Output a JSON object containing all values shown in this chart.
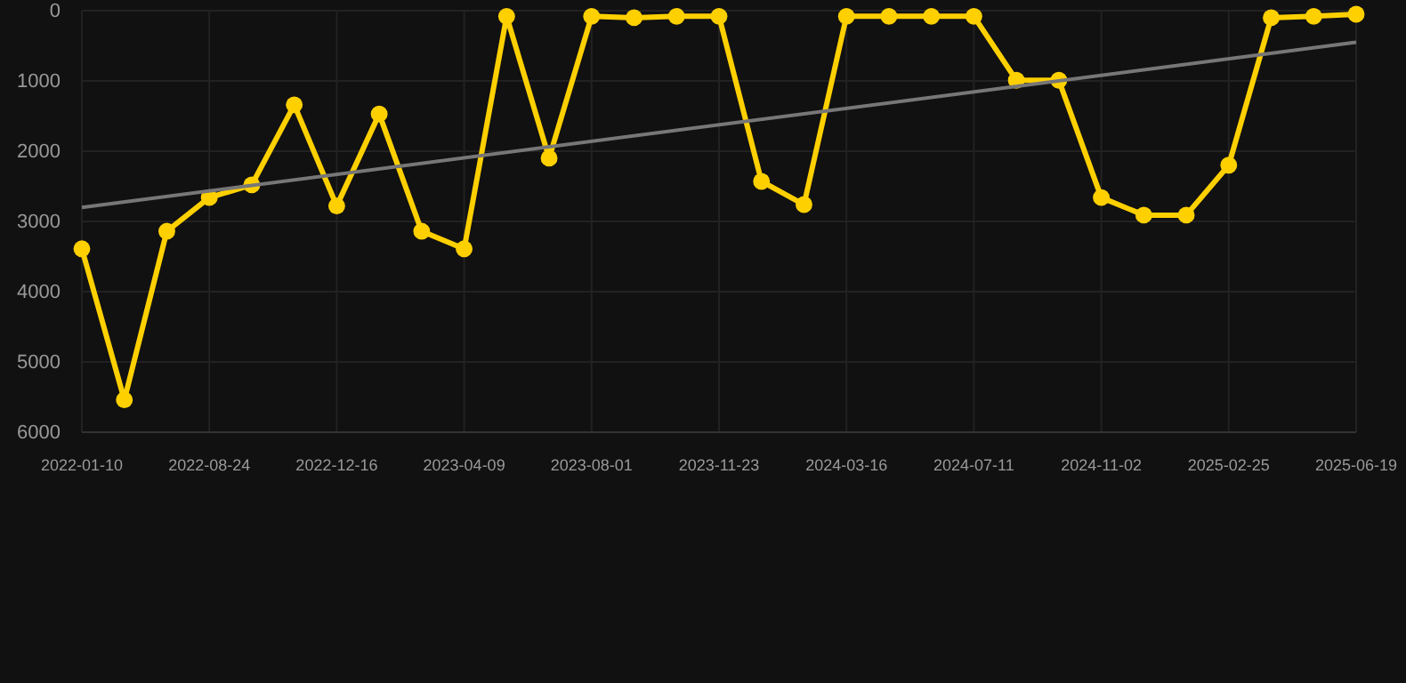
{
  "chart_data": {
    "type": "line",
    "categories": [
      "2022-01-10",
      null,
      null,
      "2022-08-24",
      null,
      null,
      "2022-12-16",
      null,
      null,
      "2023-04-09",
      null,
      null,
      "2023-08-01",
      null,
      null,
      "2023-11-23",
      null,
      null,
      "2024-03-16",
      null,
      null,
      "2024-07-11",
      null,
      null,
      "2024-11-02",
      null,
      null,
      "2025-02-25",
      null,
      null,
      "2025-06-19"
    ],
    "series": [
      {
        "color": "#ffd000",
        "values": [
          3390,
          5540,
          3140,
          2660,
          2480,
          1340,
          2780,
          1470,
          3140,
          3390,
          80,
          2100,
          80,
          100,
          80,
          80,
          2430,
          2760,
          80,
          80,
          80,
          80,
          990,
          990,
          2660,
          2910,
          2910,
          2200,
          100,
          80,
          50
        ]
      },
      {
        "type": "line",
        "color": "#777777",
        "marker": "none",
        "values": [
          2800,
          null,
          null,
          null,
          null,
          null,
          null,
          null,
          null,
          null,
          null,
          null,
          null,
          null,
          null,
          null,
          null,
          null,
          null,
          null,
          null,
          null,
          null,
          null,
          null,
          null,
          null,
          null,
          null,
          null,
          450
        ]
      }
    ],
    "ylim": [
      6000,
      0
    ],
    "yticks": [
      0,
      1000,
      2000,
      3000,
      4000,
      5000,
      6000
    ],
    "grid": true,
    "marker": "circle",
    "line_style": "solid"
  }
}
